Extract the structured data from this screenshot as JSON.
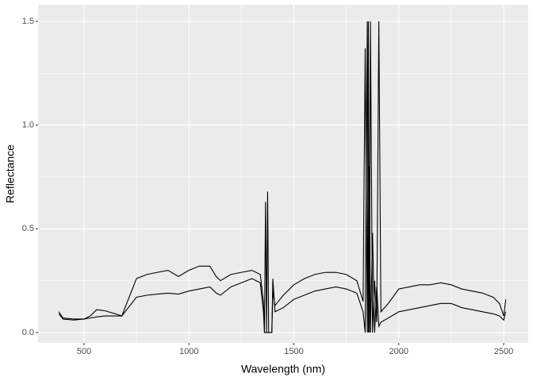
{
  "chart_data": {
    "type": "line",
    "xlabel": "Wavelength (nm)",
    "ylabel": "Reflectance",
    "x": [
      380,
      400,
      450,
      500,
      530,
      560,
      600,
      650,
      680,
      750,
      800,
      850,
      900,
      950,
      1000,
      1050,
      1100,
      1130,
      1150,
      1200,
      1250,
      1300,
      1340,
      1355,
      1360,
      1365,
      1370,
      1375,
      1380,
      1395,
      1400,
      1410,
      1450,
      1500,
      1550,
      1600,
      1650,
      1700,
      1750,
      1800,
      1830,
      1840,
      1850,
      1855,
      1860,
      1865,
      1875,
      1885,
      1895,
      1905,
      1915,
      1950,
      2000,
      2050,
      2100,
      2150,
      2200,
      2250,
      2300,
      2350,
      2400,
      2450,
      2480,
      2500,
      2510
    ],
    "series": [
      {
        "color": "#000000",
        "values": [
          0.1,
          0.07,
          0.065,
          0.065,
          0.08,
          0.11,
          0.105,
          0.09,
          0.08,
          0.26,
          0.28,
          0.29,
          0.3,
          0.27,
          0.3,
          0.32,
          0.32,
          0.27,
          0.25,
          0.28,
          0.29,
          0.3,
          0.28,
          0.15,
          0.0,
          0.63,
          0.0,
          0.68,
          0.0,
          0.0,
          0.2,
          0.13,
          0.18,
          0.23,
          0.26,
          0.28,
          0.29,
          0.29,
          0.28,
          0.25,
          0.15,
          1.37,
          0.0,
          1.5,
          0.0,
          1.5,
          0.0,
          0.25,
          0.05,
          1.5,
          0.1,
          0.14,
          0.21,
          0.22,
          0.23,
          0.23,
          0.24,
          0.23,
          0.21,
          0.2,
          0.19,
          0.17,
          0.14,
          0.08,
          0.16
        ]
      },
      {
        "color": "#000000",
        "values": [
          0.09,
          0.065,
          0.06,
          0.065,
          0.07,
          0.075,
          0.08,
          0.08,
          0.08,
          0.17,
          0.18,
          0.185,
          0.19,
          0.185,
          0.2,
          0.21,
          0.22,
          0.19,
          0.18,
          0.22,
          0.24,
          0.26,
          0.24,
          0.1,
          0.0,
          0.0,
          0.0,
          0.0,
          0.0,
          0.0,
          0.26,
          0.1,
          0.12,
          0.16,
          0.18,
          0.2,
          0.21,
          0.22,
          0.21,
          0.19,
          0.1,
          0.0,
          1.5,
          0.0,
          0.8,
          0.0,
          0.48,
          0.0,
          0.22,
          0.03,
          0.05,
          0.07,
          0.1,
          0.11,
          0.12,
          0.13,
          0.14,
          0.14,
          0.12,
          0.11,
          0.1,
          0.09,
          0.08,
          0.06,
          0.1
        ]
      }
    ],
    "xlim": [
      281,
      2617
    ],
    "ylim": [
      -0.05,
      1.58
    ],
    "xticks": [
      500,
      1000,
      1500,
      2000,
      2500
    ],
    "yticks": [
      {
        "value": 0,
        "label": "0.0"
      },
      0.5,
      {
        "value": 1,
        "label": "1.0"
      },
      1.5
    ],
    "grid": true
  }
}
